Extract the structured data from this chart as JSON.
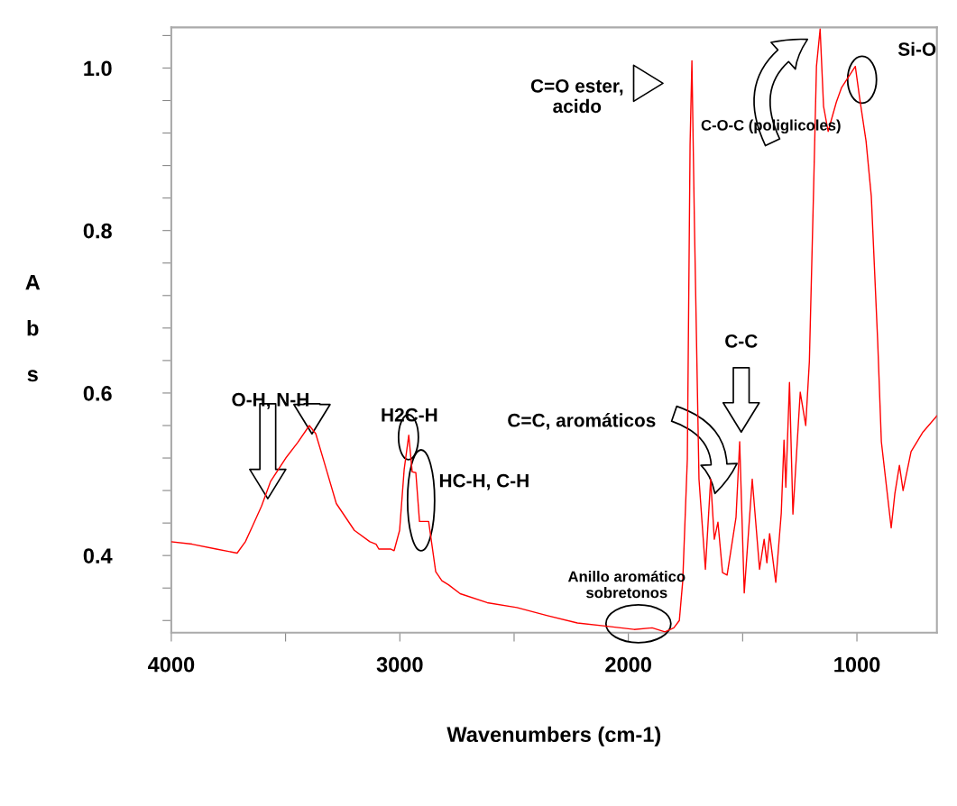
{
  "chart_data": {
    "type": "line",
    "xlabel": "Wavenumbers (cm-1)",
    "ylabel": "Abs",
    "xlim": [
      4000,
      650
    ],
    "ylim": [
      0.305,
      1.05
    ],
    "xticks": [
      {
        "value": 4000,
        "label": "4000"
      },
      {
        "value": 3500,
        "label": null
      },
      {
        "value": 3000,
        "label": "3000"
      },
      {
        "value": 2500,
        "label": null
      },
      {
        "value": 2000,
        "label": "2000"
      },
      {
        "value": 1500,
        "label": null
      },
      {
        "value": 1000,
        "label": "1000"
      }
    ],
    "yticks": [
      {
        "value": 0.32,
        "label": null
      },
      {
        "value": 0.36,
        "label": null
      },
      {
        "value": 0.4,
        "label": "0.4"
      },
      {
        "value": 0.44,
        "label": null
      },
      {
        "value": 0.48,
        "label": null
      },
      {
        "value": 0.52,
        "label": null
      },
      {
        "value": 0.56,
        "label": null
      },
      {
        "value": 0.6,
        "label": "0.6"
      },
      {
        "value": 0.64,
        "label": null
      },
      {
        "value": 0.68,
        "label": null
      },
      {
        "value": 0.72,
        "label": null
      },
      {
        "value": 0.76,
        "label": null
      },
      {
        "value": 0.8,
        "label": "0.8"
      },
      {
        "value": 0.84,
        "label": null
      },
      {
        "value": 0.88,
        "label": null
      },
      {
        "value": 0.92,
        "label": null
      },
      {
        "value": 0.96,
        "label": null
      },
      {
        "value": 1.0,
        "label": "1.0"
      },
      {
        "value": 1.04,
        "label": null
      }
    ],
    "grid": false,
    "marker": "none",
    "line_style": "solid",
    "series": [
      {
        "color": "#ff0000",
        "x": [
          4000,
          3909,
          3803,
          3712,
          3676,
          3645,
          3605,
          3566,
          3499,
          3447,
          3396,
          3368,
          3329,
          3278,
          3199,
          3131,
          3104,
          3092,
          3041,
          3025,
          3001,
          2981,
          2961,
          2946,
          2930,
          2914,
          2874,
          2843,
          2816,
          2787,
          2736,
          2618,
          2488,
          2354,
          2223,
          2093,
          1975,
          1896,
          1840,
          1801,
          1777,
          1762,
          1742,
          1730,
          1722,
          1711,
          1691,
          1663,
          1640,
          1624,
          1608,
          1588,
          1568,
          1529,
          1513,
          1493,
          1458,
          1426,
          1406,
          1394,
          1382,
          1355,
          1331,
          1319,
          1311,
          1295,
          1280,
          1248,
          1224,
          1208,
          1189,
          1177,
          1161,
          1146,
          1126,
          1090,
          1067,
          1007,
          988,
          960,
          937,
          909,
          893,
          850,
          834,
          814,
          798,
          763,
          711,
          650
        ],
        "values": [
          0.417,
          0.414,
          0.408,
          0.403,
          0.417,
          0.436,
          0.461,
          0.491,
          0.52,
          0.539,
          0.56,
          0.55,
          0.513,
          0.464,
          0.431,
          0.417,
          0.414,
          0.408,
          0.408,
          0.406,
          0.431,
          0.506,
          0.548,
          0.503,
          0.502,
          0.442,
          0.442,
          0.38,
          0.369,
          0.364,
          0.353,
          0.342,
          0.336,
          0.326,
          0.317,
          0.313,
          0.309,
          0.311,
          0.306,
          0.311,
          0.32,
          0.369,
          0.519,
          0.906,
          1.009,
          0.809,
          0.494,
          0.383,
          0.494,
          0.42,
          0.441,
          0.379,
          0.376,
          0.447,
          0.54,
          0.354,
          0.494,
          0.383,
          0.42,
          0.391,
          0.427,
          0.367,
          0.452,
          0.542,
          0.484,
          0.613,
          0.451,
          0.601,
          0.56,
          0.639,
          0.857,
          1.002,
          1.048,
          0.953,
          0.922,
          0.958,
          0.976,
          1.002,
          0.963,
          0.91,
          0.842,
          0.663,
          0.54,
          0.434,
          0.476,
          0.511,
          0.48,
          0.528,
          0.552,
          0.572
        ]
      }
    ],
    "annotations": [
      "O-H, N-H",
      "H2C-H",
      "HC-H, C-H",
      "Anillo aromático\nsobretonos",
      "C=O ester,\nacido",
      "C-O-C (poliglicoles)",
      "Si-O",
      "C-C",
      "C=C, aromáticos"
    ]
  }
}
